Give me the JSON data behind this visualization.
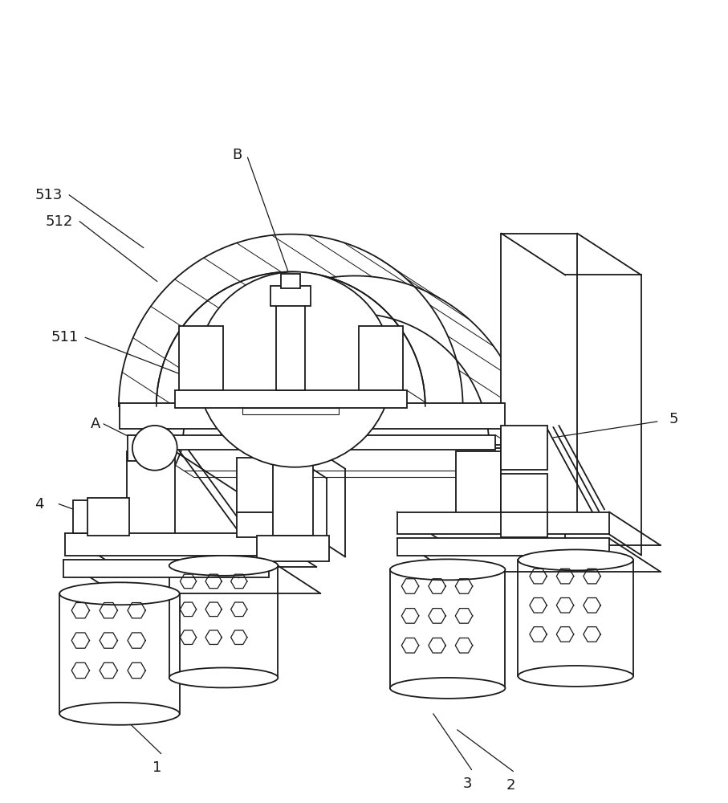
{
  "bg_color": "#ffffff",
  "line_color": "#1a1a1a",
  "lw": 1.3,
  "lw_thin": 0.8,
  "fig_width": 9.07,
  "fig_height": 10.0,
  "label_fs": 13
}
